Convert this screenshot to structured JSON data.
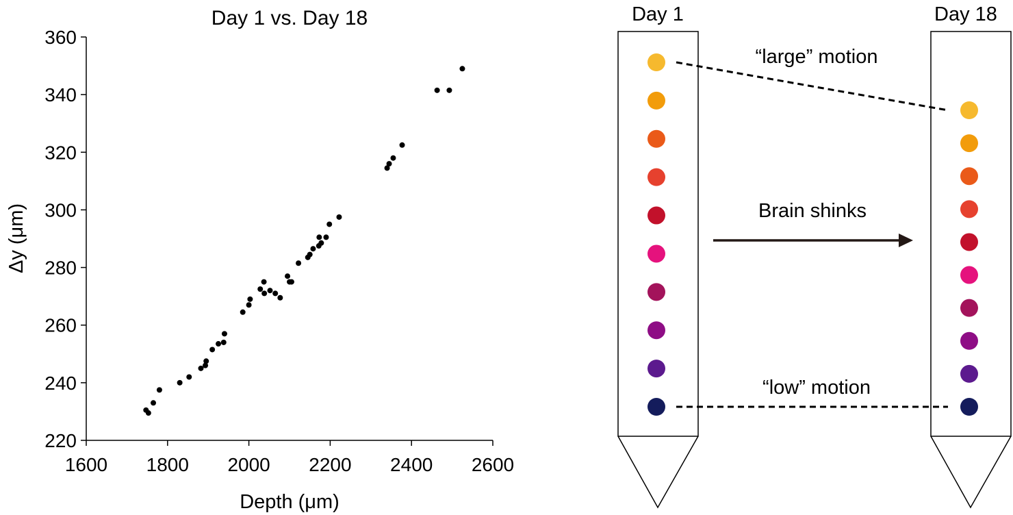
{
  "chart_data": [
    {
      "type": "scatter",
      "title": "Day 1 vs. Day 18",
      "xlabel": "Depth (μm)",
      "ylabel": "Δy (μm)",
      "xlim": [
        1600,
        2600
      ],
      "ylim": [
        220,
        360
      ],
      "xticks": [
        1600,
        1800,
        2000,
        2200,
        2400,
        2600
      ],
      "yticks": [
        220,
        240,
        260,
        280,
        300,
        320,
        340,
        360
      ],
      "grid": false,
      "marker_color": "#000000",
      "series": [
        {
          "points": [
            [
              1747,
              230.5
            ],
            [
              1753,
              229.5
            ],
            [
              1765,
              233
            ],
            [
              1780,
              237.5
            ],
            [
              1830,
              240
            ],
            [
              1853,
              242
            ],
            [
              1882,
              245
            ],
            [
              1893,
              246
            ],
            [
              1895,
              247.5
            ],
            [
              1910,
              251.5
            ],
            [
              1925,
              253.5
            ],
            [
              1938,
              254
            ],
            [
              1940,
              257
            ],
            [
              1985,
              264.5
            ],
            [
              2000,
              267
            ],
            [
              2003,
              269
            ],
            [
              2028,
              272.5
            ],
            [
              2037,
              275
            ],
            [
              2038,
              271
            ],
            [
              2052,
              272
            ],
            [
              2065,
              271
            ],
            [
              2077,
              269.5
            ],
            [
              2095,
              277
            ],
            [
              2100,
              275
            ],
            [
              2105,
              275
            ],
            [
              2122,
              281.5
            ],
            [
              2145,
              283.5
            ],
            [
              2150,
              284.5
            ],
            [
              2158,
              286.5
            ],
            [
              2172,
              287.5
            ],
            [
              2173,
              290.5
            ],
            [
              2178,
              288.5
            ],
            [
              2190,
              290.5
            ],
            [
              2198,
              295
            ],
            [
              2222,
              297.5
            ],
            [
              2340,
              314.5
            ],
            [
              2345,
              316
            ],
            [
              2355,
              318
            ],
            [
              2377,
              322.5
            ],
            [
              2463,
              341.5
            ],
            [
              2493,
              341.5
            ],
            [
              2525,
              349
            ]
          ]
        }
      ]
    },
    {
      "type": "diagram",
      "probe_labels": [
        "Day 1",
        "Day 18"
      ],
      "annotations": {
        "top": "“large” motion",
        "middle": "Brain shinks",
        "bottom": "“low” motion"
      },
      "site_colors": [
        "#f6b92e",
        "#f29c0b",
        "#ea5a19",
        "#e6412e",
        "#c2112b",
        "#e5127d",
        "#a3135b",
        "#8e0d85",
        "#5c1a8e",
        "#141c5c"
      ]
    }
  ]
}
